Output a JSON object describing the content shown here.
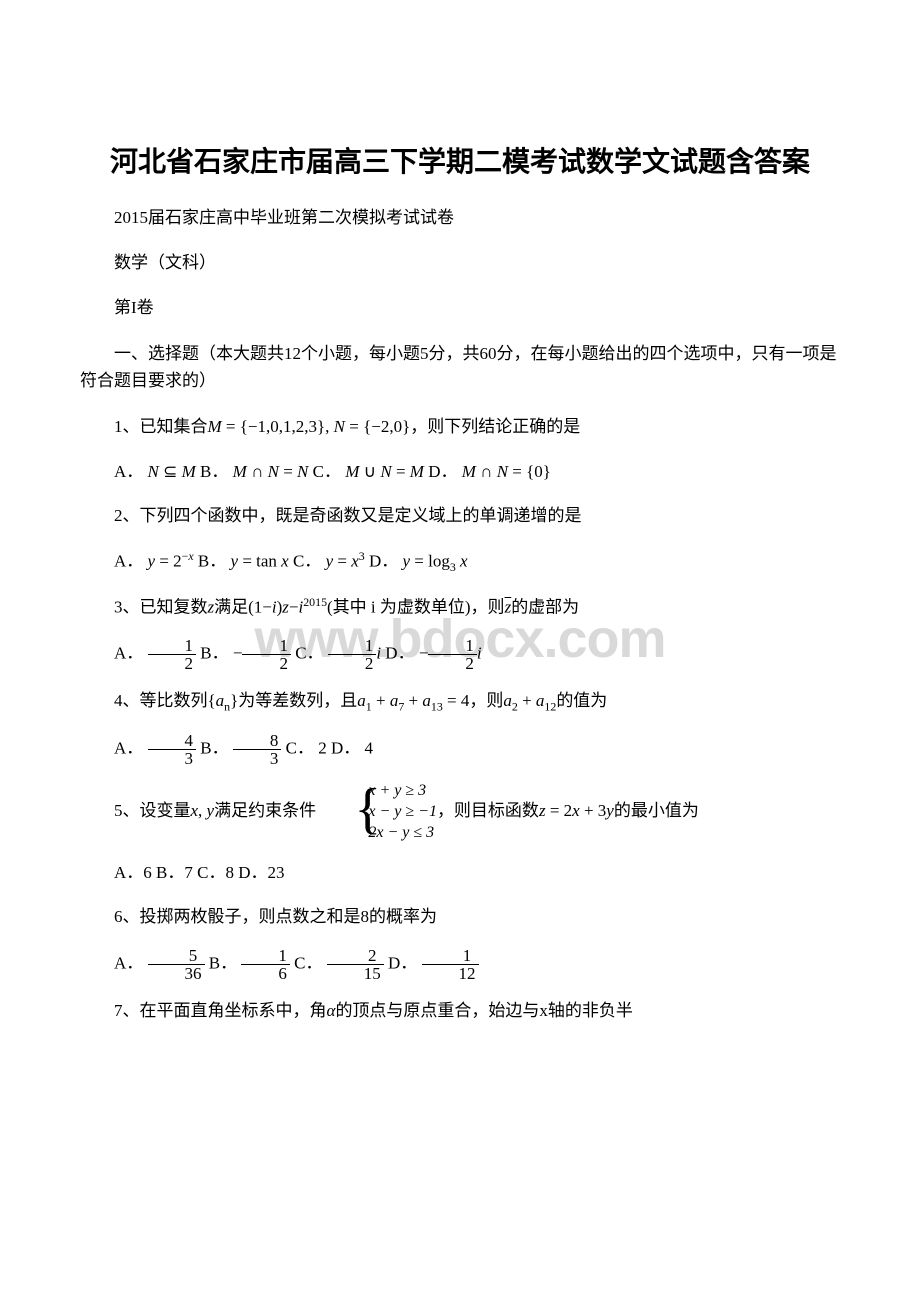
{
  "watermark": "www.bdocx.com",
  "title": "河北省石家庄市届高三下学期二模考试数学文试题含答案",
  "subtitle1": "2015届石家庄高中毕业班第二次模拟考试试卷",
  "subtitle2": "数学（文科）",
  "subtitle3": "第I卷",
  "section1": "一、选择题（本大题共12个小题，每小题5分，共60分，在每小题给出的四个选项中，只有一项是符合题目要求的）",
  "q1_pre": "1、已知集合",
  "q1_math": "M = {−1,0,1,2,3}, N = {−2,0}",
  "q1_post": "，则下列结论正确的是",
  "q1_optA": "N ⊆ M",
  "q1_optB": "M ∩ N = N",
  "q1_optC": "M ∪ N = M",
  "q1_optD": "M ∩ N = {0}",
  "q2": "2、下列四个函数中，既是奇函数又是定义域上的单调递增的是",
  "q3_pre": "3、已知复数",
  "q3_post1": "满足",
  "q3_post2": "(其中 i 为虚数单位)，则",
  "q3_post3": "的虚部为",
  "q4_pre": "4、等比数列",
  "q4_mid": "为等差数列，且",
  "q4_mid2": "，则",
  "q4_post": "的值为",
  "q5_pre": "5、设变量",
  "q5_mid": "满足约束条件",
  "q5_post1": "，则目标函数",
  "q5_post2": "的最小值为",
  "q5_opts": "A．6 B．7 C．8 D．23",
  "q6": "6、投掷两枚骰子，则点数之和是8的概率为",
  "q7_pre": "7、在平面直角坐标系中，角",
  "q7_post": "的顶点与原点重合，始边与x轴的非负半",
  "labels": {
    "A": "A．",
    "B": "B．",
    "C": "C．",
    "D": "D．",
    "Bsp": " B．",
    "Csp": " C．",
    "Dsp": " D．"
  },
  "colors": {
    "text": "#000000",
    "bg": "#ffffff",
    "watermark": "#d9d9d9"
  }
}
